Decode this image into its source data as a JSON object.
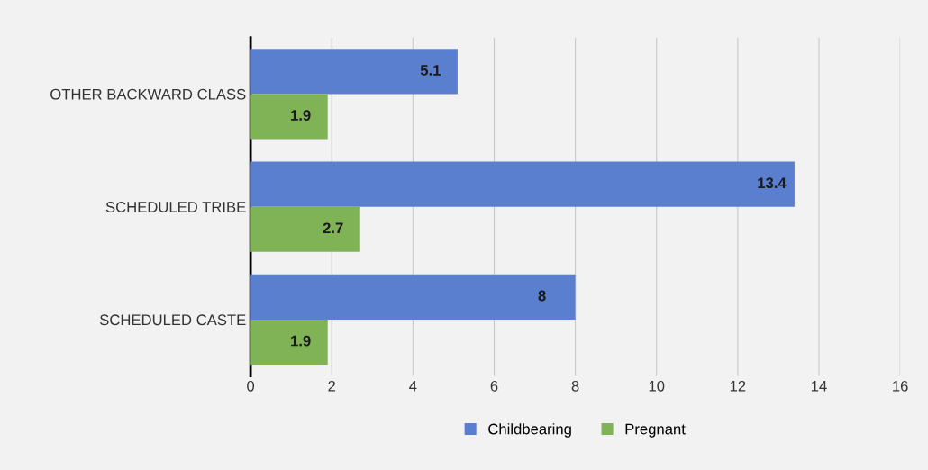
{
  "chart_data": {
    "type": "bar",
    "orientation": "horizontal",
    "categories": [
      "OTHER BACKWARD CLASS",
      "SCHEDULED TRIBE",
      "SCHEDULED CASTE"
    ],
    "series": [
      {
        "name": "Childbearing",
        "color": "#5b7fcf",
        "values": [
          5.1,
          13.4,
          8
        ]
      },
      {
        "name": "Pregnant",
        "color": "#7fb356",
        "values": [
          1.9,
          2.7,
          1.9
        ]
      }
    ],
    "xlim": [
      0,
      16
    ],
    "xticks": [
      0,
      2,
      4,
      6,
      8,
      10,
      12,
      14,
      16
    ],
    "grid": "x",
    "legend": "bottom",
    "data_labels": true
  }
}
